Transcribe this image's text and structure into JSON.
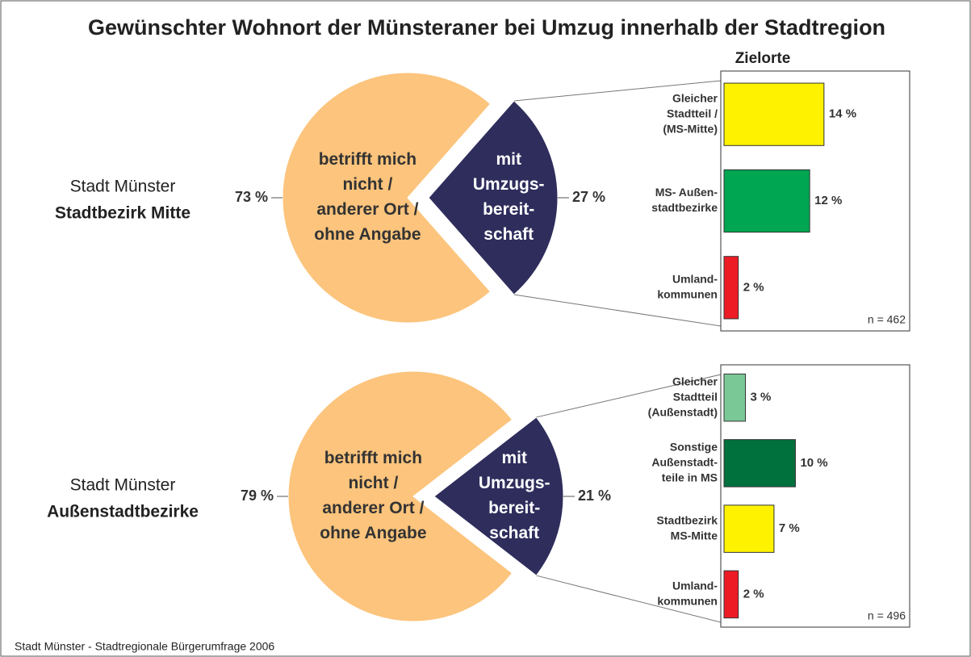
{
  "title": "Gewünschter Wohnort der Münsteraner bei Umzug innerhalb der Stadtregion",
  "source": "Stadt Münster - Stadtregionale Bürgerumfrage 2006",
  "chart_data": [
    {
      "type": "pie",
      "group_label": [
        "Stadt Münster",
        "Stadtbezirk Mitte"
      ],
      "categories": [
        [
          "mit",
          "Umzugs-",
          "bereit-",
          "schaft"
        ],
        [
          "betrifft mich",
          "nicht /",
          "anderer Ort /",
          "ohne Angabe"
        ]
      ],
      "values": [
        27,
        73
      ],
      "value_labels": [
        "27 %",
        "73 %"
      ],
      "colors": [
        "#2e2d5c",
        "#fcc47c"
      ]
    },
    {
      "type": "bar",
      "title": "Zielorte",
      "categories": [
        [
          "Gleicher",
          "Stadtteil /",
          "(MS-Mitte)"
        ],
        [
          "MS- Außen-",
          "stadtbezirke"
        ],
        [
          "Umland-",
          "kommunen"
        ]
      ],
      "values": [
        14,
        12,
        2
      ],
      "value_labels": [
        "14 %",
        "12 %",
        "2 %"
      ],
      "colors": [
        "#fff200",
        "#00a651",
        "#ed1c24"
      ],
      "xlim": [
        0,
        26
      ],
      "note": "n = 462"
    },
    {
      "type": "pie",
      "group_label": [
        "Stadt Münster",
        "Außenstadtbezirke"
      ],
      "categories": [
        [
          "mit",
          "Umzugs-",
          "bereit-",
          "schaft"
        ],
        [
          "betrifft mich",
          "nicht /",
          "anderer Ort /",
          "ohne Angabe"
        ]
      ],
      "values": [
        21,
        79
      ],
      "value_labels": [
        "21 %",
        "79 %"
      ],
      "colors": [
        "#2e2d5c",
        "#fcc47c"
      ]
    },
    {
      "type": "bar",
      "categories": [
        [
          "Gleicher",
          "Stadtteil",
          "(Außenstadt)"
        ],
        [
          "Sonstige",
          "Außenstadt-",
          "teile in MS"
        ],
        [
          "Stadtbezirk",
          "MS-Mitte"
        ],
        [
          "Umland-",
          "kommunen"
        ]
      ],
      "values": [
        3,
        10,
        7,
        2
      ],
      "value_labels": [
        "3 %",
        "10 %",
        "7 %",
        "2 %"
      ],
      "colors": [
        "#7ac896",
        "#00703c",
        "#fff200",
        "#ed1c24"
      ],
      "xlim": [
        0,
        26
      ],
      "note": "n = 496"
    }
  ]
}
